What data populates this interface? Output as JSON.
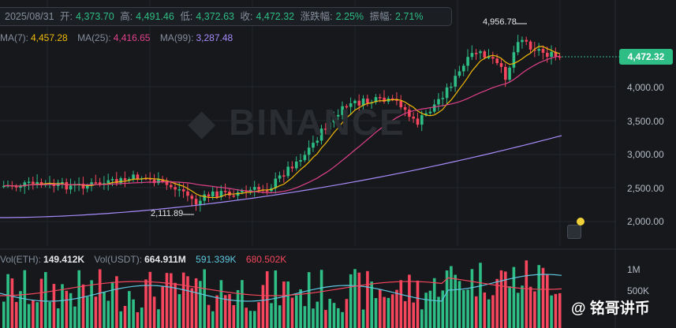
{
  "info": {
    "date": "2025/08/31",
    "open_label": "开:",
    "open": "4,373.70",
    "high_label": "高:",
    "high": "4,491.46",
    "low_label": "低:",
    "low": "4,372.63",
    "close_label": "收:",
    "close": "4,472.32",
    "change_label": "涨跌幅:",
    "change": "2.25%",
    "amplitude_label": "振幅:",
    "amplitude": "2.71%"
  },
  "ma": {
    "ma7_label": "MA(7):",
    "ma7": "4,457.28",
    "ma25_label": "MA(25):",
    "ma25": "4,416.65",
    "ma99_label": "MA(99):",
    "ma99": "3,287.48"
  },
  "volume": {
    "vol_eth_label": "Vol(ETH):",
    "vol_eth": "149.412K",
    "vol_usdt_label": "Vol(USDT):",
    "vol_usdt": "664.911M",
    "vol_ma1": "591.339K",
    "vol_ma2": "680.502K",
    "axis": [
      "1M",
      "500K"
    ]
  },
  "price_tag": "4,472.32",
  "price_axis": [
    "4,000.00",
    "3,500.00",
    "3,000.00",
    "2,500.00",
    "2,000.00"
  ],
  "annotations": {
    "high_mark": "4,956.78",
    "low_mark": "2,111.89"
  },
  "watermark_text": "BINANCE",
  "watermark_user": "@ 铭哥讲币",
  "colors": {
    "up": "#2ebd85",
    "down": "#f6465d",
    "ma7": "#f0b90b",
    "ma25": "#e0418a",
    "ma99": "#a78bfa",
    "volma1": "#5ec8e0",
    "volma2": "#f6465d"
  }
}
